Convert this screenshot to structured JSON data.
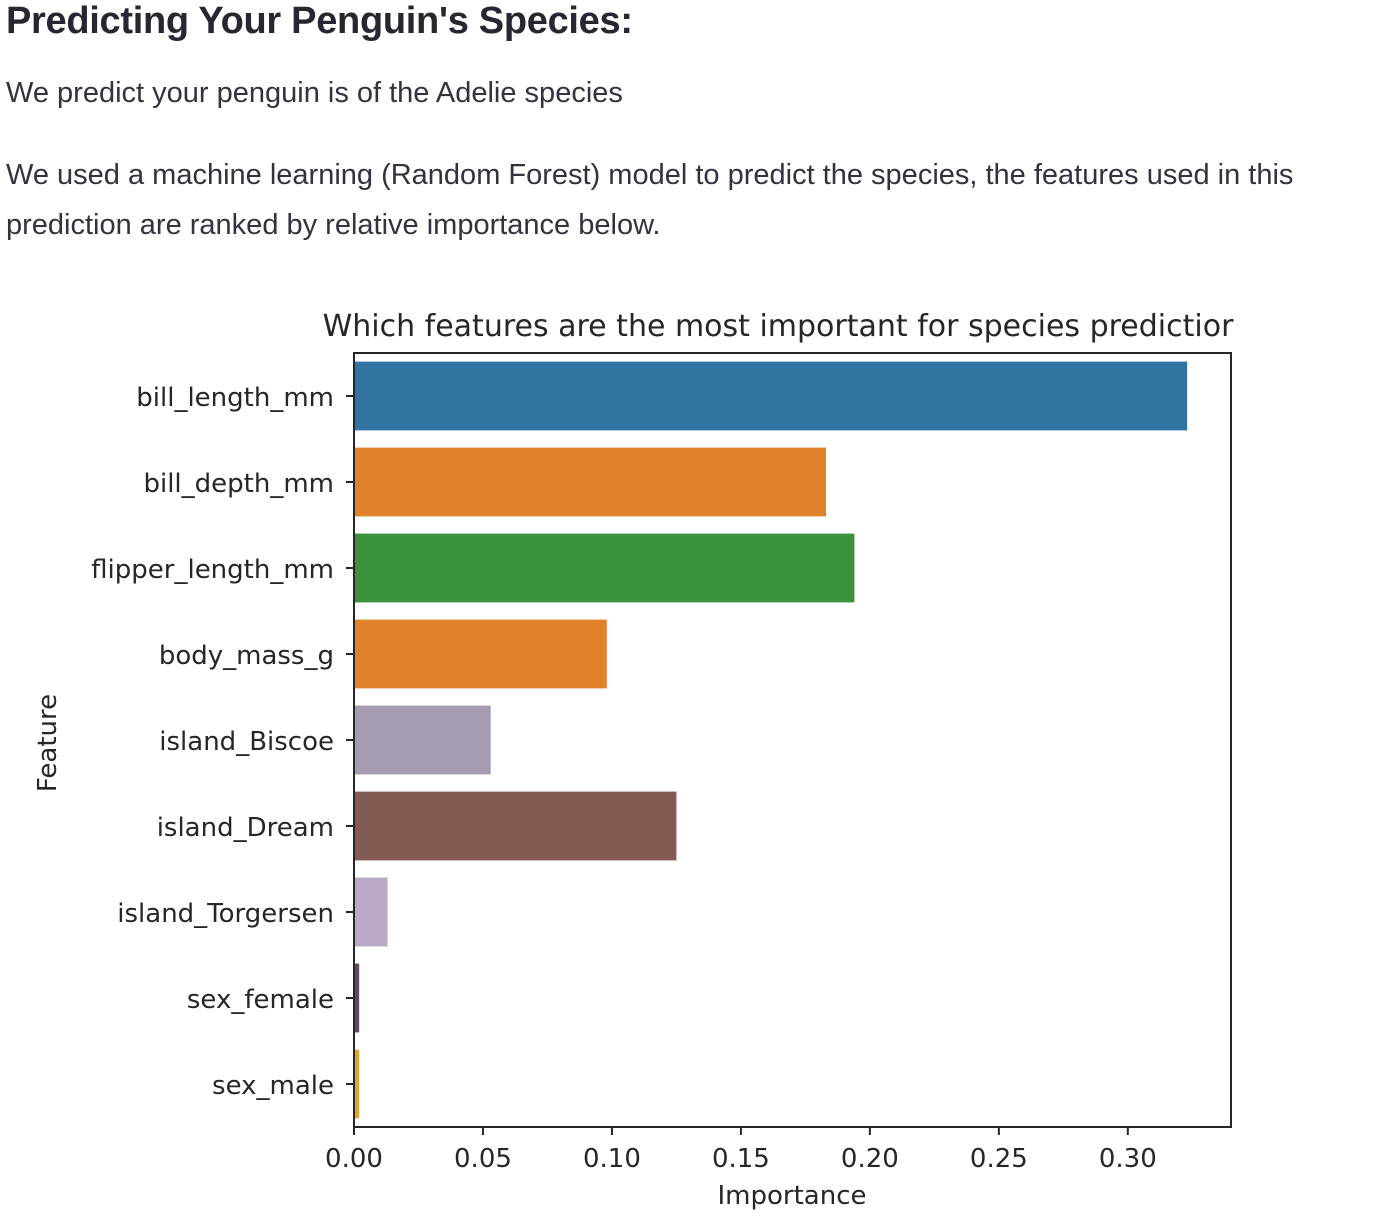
{
  "heading": "Predicting Your Penguin's Species:",
  "prediction_text": "We predict your penguin is of the Adelie species",
  "description_text": "We used a machine learning (Random Forest) model to predict the species, the features used in this prediction are ranked by relative importance below.",
  "chart_data": {
    "type": "bar",
    "orientation": "horizontal",
    "title": "Which features are the most important for species predictior",
    "xlabel": "Importance",
    "ylabel": "Feature",
    "xlim": [
      0,
      0.34
    ],
    "x_ticks": [
      "0.00",
      "0.05",
      "0.10",
      "0.15",
      "0.20",
      "0.25",
      "0.30"
    ],
    "categories": [
      "bill_length_mm",
      "bill_depth_mm",
      "flipper_length_mm",
      "body_mass_g",
      "island_Biscoe",
      "island_Dream",
      "island_Torgersen",
      "sex_female",
      "sex_male"
    ],
    "values": [
      0.323,
      0.183,
      0.194,
      0.098,
      0.053,
      0.125,
      0.013,
      0.002,
      0.002
    ],
    "colors": [
      "#3274a1",
      "#e1812c",
      "#3a923a",
      "#e1812c",
      "#a49bb3",
      "#845b53",
      "#b8a9c6",
      "#5d4a5e",
      "#e1a72c"
    ],
    "grid": false
  }
}
